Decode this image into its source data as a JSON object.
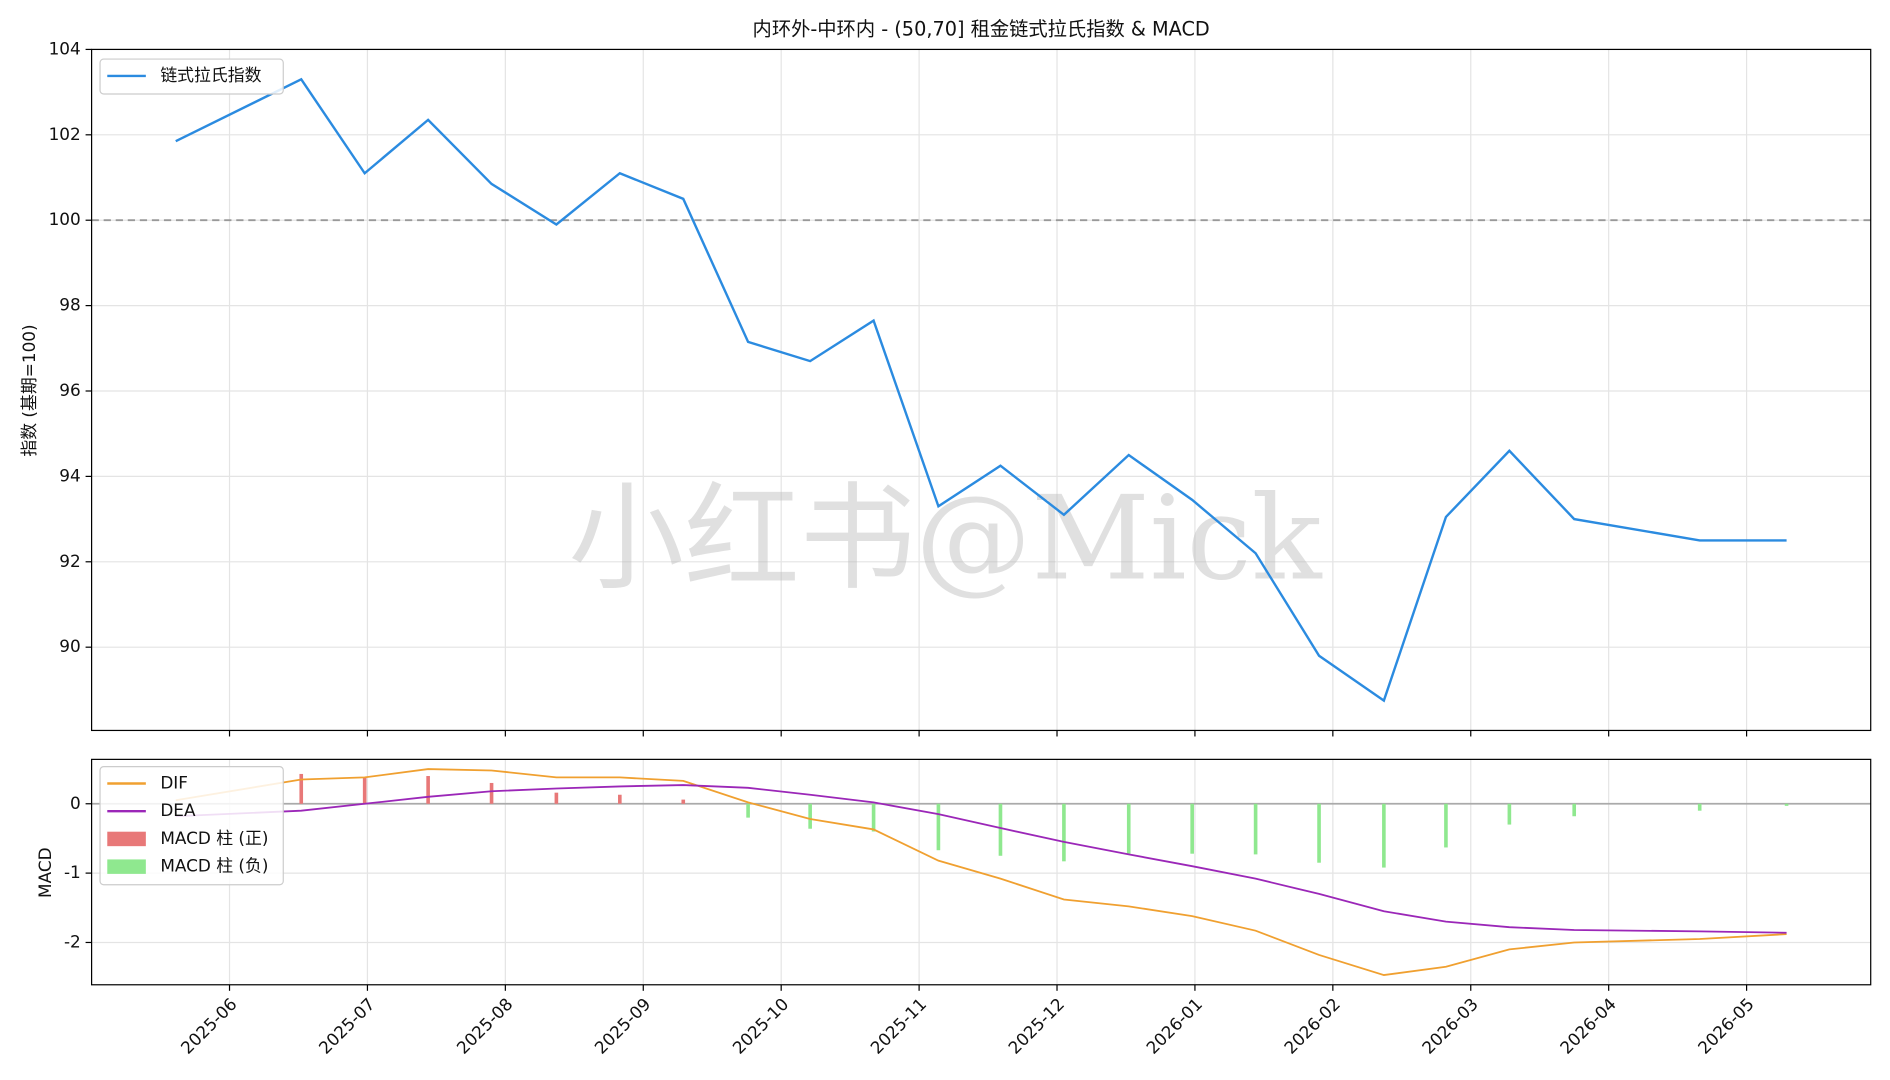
{
  "chart_data": [
    {
      "type": "line",
      "title": "内环外-中环内 - (50,70]  租金链式拉氏指数 & MACD",
      "ylabel": "指数 (基期=100)",
      "watermark": "小红书@Mick",
      "x": [
        -0.39,
        0.52,
        0.98,
        1.44,
        1.9,
        2.37,
        2.83,
        3.29,
        3.76,
        4.21,
        4.67,
        5.14,
        5.59,
        6.05,
        6.52,
        6.98,
        7.44,
        7.9,
        8.37,
        8.82,
        9.28,
        9.75,
        10.66,
        11.29
      ],
      "series": [
        {
          "name": "链式拉氏指数",
          "color": "#2b8be0",
          "values": [
            101.85,
            103.3,
            101.1,
            102.35,
            100.85,
            99.9,
            101.1,
            100.5,
            97.15,
            96.7,
            97.65,
            93.3,
            94.25,
            93.1,
            94.5,
            93.45,
            92.2,
            89.8,
            88.75,
            93.05,
            94.6,
            93.0,
            92.5,
            92.5
          ]
        }
      ],
      "hline": 100,
      "xlim": [
        -1.0,
        11.9
      ],
      "xticks": [
        0,
        1,
        2,
        3,
        4,
        5,
        6,
        7,
        8,
        9,
        10,
        11
      ],
      "ylim": [
        88.05,
        104
      ],
      "yticks": [
        90,
        92,
        94,
        96,
        98,
        100,
        102,
        104
      ],
      "grid": true,
      "legend": "upper left"
    },
    {
      "type": "macd",
      "ylabel": "MACD",
      "x": [
        -0.39,
        0.52,
        0.98,
        1.44,
        1.9,
        2.37,
        2.83,
        3.29,
        3.76,
        4.21,
        4.67,
        5.14,
        5.59,
        6.05,
        6.52,
        6.98,
        7.44,
        7.9,
        8.37,
        8.82,
        9.28,
        9.75,
        10.66,
        11.29
      ],
      "series": [
        {
          "name": "DIF",
          "color": "#f0a030",
          "values": [
            0.05,
            0.35,
            0.38,
            0.5,
            0.48,
            0.38,
            0.38,
            0.33,
            0.02,
            -0.22,
            -0.37,
            -0.82,
            -1.08,
            -1.38,
            -1.48,
            -1.62,
            -1.83,
            -2.18,
            -2.47,
            -2.35,
            -2.1,
            -2.0,
            -1.95,
            -1.88
          ]
        },
        {
          "name": "DEA",
          "color": "#9b27b8",
          "values": [
            -0.18,
            -0.1,
            0.0,
            0.1,
            0.18,
            0.22,
            0.25,
            0.27,
            0.23,
            0.13,
            0.02,
            -0.15,
            -0.35,
            -0.55,
            -0.73,
            -0.9,
            -1.08,
            -1.3,
            -1.55,
            -1.7,
            -1.78,
            -1.82,
            -1.84,
            -1.86
          ]
        }
      ],
      "histogram": {
        "values": [
          null,
          0.43,
          0.38,
          0.4,
          0.3,
          0.16,
          0.13,
          0.06,
          -0.2,
          -0.36,
          -0.4,
          -0.67,
          -0.75,
          -0.83,
          -0.72,
          -0.72,
          -0.73,
          -0.85,
          -0.92,
          -0.63,
          -0.3,
          -0.18,
          -0.1,
          -0.03
        ],
        "positive": {
          "name": "MACD 柱 (正)",
          "color": "#e87878"
        },
        "negative": {
          "name": "MACD 柱 (负)",
          "color": "#8fe88f"
        }
      },
      "xlim": [
        -1.0,
        11.9
      ],
      "xticks": [
        {
          "value": 0,
          "label": "2025-06"
        },
        {
          "value": 1,
          "label": "2025-07"
        },
        {
          "value": 2,
          "label": "2025-08"
        },
        {
          "value": 3,
          "label": "2025-09"
        },
        {
          "value": 4,
          "label": "2025-10"
        },
        {
          "value": 5,
          "label": "2025-11"
        },
        {
          "value": 6,
          "label": "2025-12"
        },
        {
          "value": 7,
          "label": "2026-01"
        },
        {
          "value": 8,
          "label": "2026-02"
        },
        {
          "value": 9,
          "label": "2026-03"
        },
        {
          "value": 10,
          "label": "2026-04"
        },
        {
          "value": 11,
          "label": "2026-05"
        }
      ],
      "ylim": [
        -2.61,
        0.64
      ],
      "yticks": [
        -2,
        -1,
        0
      ],
      "grid": true,
      "legend": "upper left"
    }
  ]
}
